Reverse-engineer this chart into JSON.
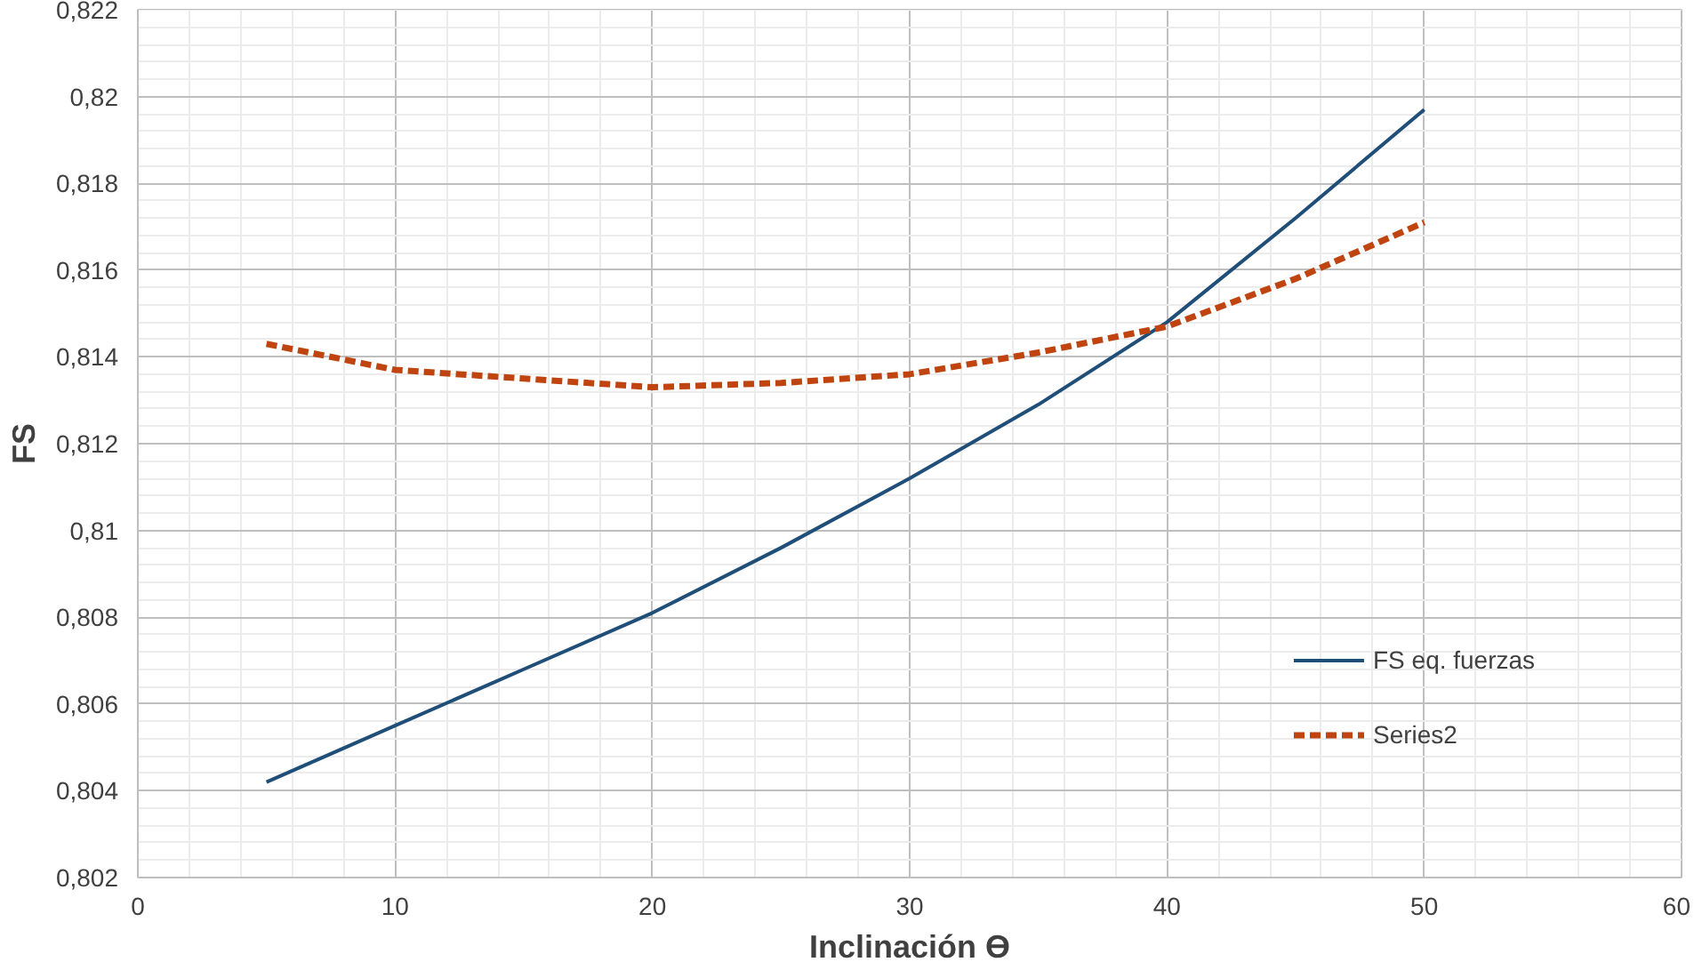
{
  "chart_data": {
    "type": "line",
    "xlabel": "Inclinación ϴ",
    "ylabel": "FS",
    "x": [
      5,
      10,
      15,
      20,
      25,
      30,
      35,
      40,
      45,
      50
    ],
    "series": [
      {
        "name": "FS eq. fuerzas",
        "color": "#1f4e79",
        "line_style": "solid",
        "values": [
          0.8042,
          0.8055,
          0.8068,
          0.8081,
          0.8096,
          0.8112,
          0.8129,
          0.8148,
          0.8172,
          0.8197
        ]
      },
      {
        "name": "Series2",
        "color": "#c0440f",
        "line_style": "dashed",
        "values": [
          0.8143,
          0.8137,
          0.8135,
          0.8133,
          0.8134,
          0.8136,
          0.8141,
          0.8147,
          0.8158,
          0.8171
        ]
      }
    ],
    "xlim": [
      0,
      60
    ],
    "xticks": [
      0,
      10,
      20,
      30,
      40,
      50,
      60
    ],
    "ylim": [
      0.802,
      0.822
    ],
    "yticks": [
      {
        "value": 0.802,
        "label": "0,802"
      },
      {
        "value": 0.804,
        "label": "0,804"
      },
      {
        "value": 0.806,
        "label": "0,806"
      },
      {
        "value": 0.808,
        "label": "0,808"
      },
      {
        "value": 0.81,
        "label": "0,81"
      },
      {
        "value": 0.812,
        "label": "0,812"
      },
      {
        "value": 0.814,
        "label": "0,814"
      },
      {
        "value": 0.816,
        "label": "0,816"
      },
      {
        "value": 0.818,
        "label": "0,818"
      },
      {
        "value": 0.82,
        "label": "0,82"
      },
      {
        "value": 0.822,
        "label": "0,822"
      }
    ],
    "grid": true,
    "legend": "right",
    "marker": "none"
  }
}
